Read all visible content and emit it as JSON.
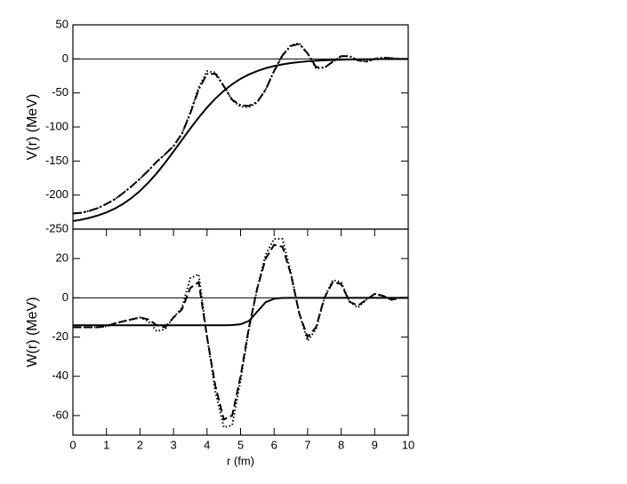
{
  "chart_data": [
    {
      "type": "line",
      "ylabel": "V(r) (MeV)",
      "xlim": [
        0,
        10
      ],
      "ylim": [
        -250,
        50
      ],
      "yticks": [
        -250,
        -200,
        -150,
        -100,
        -50,
        0,
        50
      ],
      "zeroline": true,
      "x": [
        0,
        0.25,
        0.5,
        0.75,
        1,
        1.25,
        1.5,
        1.75,
        2,
        2.25,
        2.5,
        2.75,
        3,
        3.25,
        3.5,
        3.75,
        4,
        4.25,
        4.5,
        4.75,
        5,
        5.25,
        5.5,
        5.75,
        6,
        6.25,
        6.5,
        6.75,
        7,
        7.25,
        7.5,
        7.75,
        8,
        8.25,
        8.5,
        8.75,
        9,
        9.25,
        9.5,
        9.75,
        10
      ],
      "series": [
        {
          "color": "#000000",
          "linestyle": "solid",
          "values": [
            -238.2,
            -236.1,
            -233.4,
            -229.9,
            -225.4,
            -219.8,
            -212.8,
            -204.2,
            -193.9,
            -181.7,
            -167.9,
            -152.5,
            -136.0,
            -119.1,
            -102.3,
            -86.2,
            -71.4,
            -58.2,
            -46.8,
            -37.1,
            -29.2,
            -22.8,
            -17.7,
            -13.6,
            -10.5,
            -8.0,
            -6.1,
            -4.7,
            -3.5,
            -2.7,
            -2.0,
            -1.6,
            -1.2,
            -0.9,
            -0.7,
            -0.5,
            -0.4,
            -0.3,
            -0.2,
            -0.2,
            -0.1
          ]
        },
        {
          "color": "#000000",
          "linestyle": "dashdot",
          "values": [
            -227,
            -226,
            -223,
            -219,
            -213,
            -206,
            -197,
            -187,
            -176,
            -164,
            -151,
            -140,
            -128,
            -110,
            -80,
            -45,
            -22,
            -22,
            -40,
            -60,
            -68,
            -69,
            -63,
            -45,
            -18,
            5,
            19,
            22,
            8,
            -12,
            -13,
            -4,
            4,
            4,
            -2,
            -4,
            0,
            2,
            1,
            0,
            0
          ]
        },
        {
          "color": "#000000",
          "linestyle": "dotted",
          "values": [
            -227,
            -226,
            -223,
            -219,
            -213,
            -206,
            -197,
            -187,
            -176,
            -164,
            -151,
            -140,
            -128,
            -110,
            -79,
            -42,
            -18,
            -20,
            -40,
            -61,
            -70,
            -71,
            -64,
            -45,
            -17,
            6,
            20,
            23,
            8,
            -14,
            -13,
            -4,
            4,
            4,
            -2,
            -4,
            0,
            2,
            1,
            0,
            0
          ]
        }
      ]
    },
    {
      "type": "line",
      "xlabel": "r (fm)",
      "ylabel": "W(r) (MeV)",
      "xlim": [
        0,
        10
      ],
      "ylim": [
        -70,
        35
      ],
      "xticks": [
        0,
        1,
        2,
        3,
        4,
        5,
        6,
        7,
        8,
        9,
        10
      ],
      "yticks": [
        -60,
        -40,
        -20,
        0,
        20
      ],
      "zeroline": true,
      "x": [
        0,
        0.25,
        0.5,
        0.75,
        1,
        1.25,
        1.5,
        1.75,
        2,
        2.25,
        2.5,
        2.75,
        3,
        3.25,
        3.5,
        3.75,
        4,
        4.25,
        4.5,
        4.75,
        5,
        5.25,
        5.5,
        5.75,
        6,
        6.25,
        6.5,
        6.75,
        7,
        7.25,
        7.5,
        7.75,
        8,
        8.25,
        8.5,
        8.75,
        9,
        9.25,
        9.5,
        9.75,
        10
      ],
      "series": [
        {
          "color": "#000000",
          "linestyle": "solid",
          "values": [
            -14,
            -14,
            -14,
            -14,
            -14,
            -14,
            -14,
            -14,
            -14,
            -14,
            -14,
            -14,
            -14,
            -14,
            -14,
            -14,
            -14,
            -14,
            -14,
            -13.9,
            -13.5,
            -11.8,
            -7,
            -2.2,
            -0.5,
            -0.1,
            0,
            0,
            0,
            0,
            0,
            0,
            0,
            0,
            0,
            0,
            0,
            0,
            0,
            0,
            0
          ]
        },
        {
          "color": "#000000",
          "linestyle": "dashed",
          "values": [
            -15,
            -15,
            -15,
            -15,
            -14.5,
            -13,
            -12,
            -11,
            -10,
            -11,
            -14,
            -15,
            -10,
            -6,
            5,
            8,
            -20,
            -45,
            -62,
            -60,
            -40,
            -15,
            5,
            20,
            27,
            26,
            12,
            -8,
            -20,
            -15,
            0,
            8,
            7,
            -2,
            -4,
            -1,
            2,
            1,
            -1,
            0,
            0
          ]
        },
        {
          "color": "#000000",
          "linestyle": "dotted",
          "values": [
            -15,
            -15,
            -15,
            -15,
            -14.5,
            -13,
            -12,
            -11,
            -10,
            -12,
            -17,
            -16,
            -10,
            -5,
            10,
            12,
            -20,
            -48,
            -66,
            -65,
            -42,
            -16,
            5,
            22,
            30,
            30,
            13,
            -8,
            -22,
            -16,
            0,
            9,
            8,
            -2,
            -5,
            -1,
            2,
            1,
            -1,
            0,
            0
          ]
        }
      ]
    }
  ]
}
